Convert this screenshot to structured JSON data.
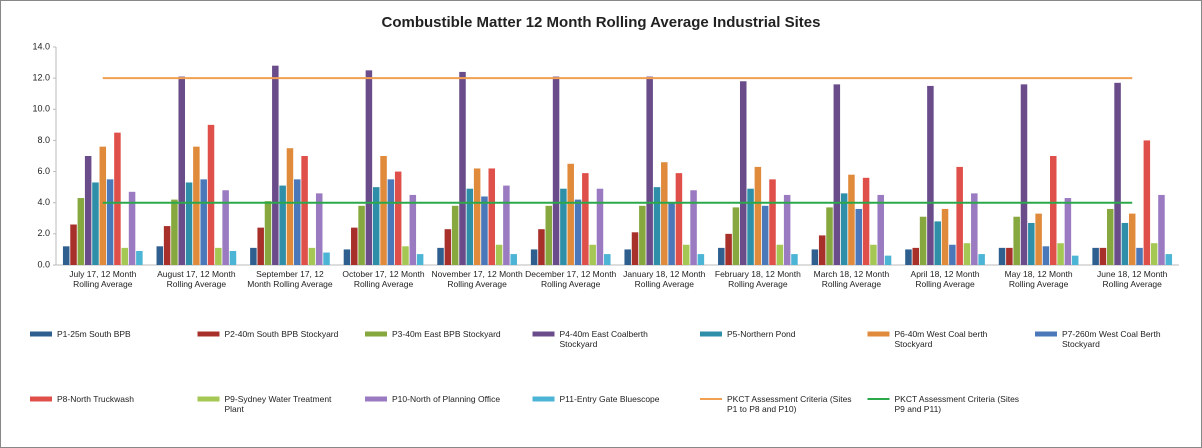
{
  "chart_data": {
    "type": "bar",
    "title": "Combustible Matter 12 Month Rolling Average Industrial Sites",
    "categories": [
      "July 17, 12 Month Rolling Average",
      "August 17, 12 Month Rolling Average",
      "September 17, 12 Month Rolling Average",
      "October 17, 12 Month Rolling Average",
      "November 17, 12 Month Rolling Average",
      "December 17, 12 Month Rolling Average",
      "January 18, 12 Month Rolling Average",
      "February 18, 12 Month Rolling Average",
      "March 18, 12 Month Rolling Average",
      "April 18, 12 Month Rolling Average",
      "May 18, 12 Month Rolling Average",
      "June 18, 12 Month Rolling Average"
    ],
    "ylim": [
      0,
      14
    ],
    "yticks": [
      {
        "value": 0,
        "label": "0.0"
      },
      {
        "value": 2,
        "label": "2.0"
      },
      {
        "value": 4,
        "label": "4.0"
      },
      {
        "value": 6,
        "label": "6.0"
      },
      {
        "value": 8,
        "label": "8.0"
      },
      {
        "value": 10,
        "label": "10.0"
      },
      {
        "value": 12,
        "label": "12.0"
      },
      {
        "value": 14,
        "label": "14.0"
      }
    ],
    "grid": false,
    "legend": "bottom",
    "series": [
      {
        "name": "P1-25m South BPB",
        "color": "#2e5f8f",
        "values": [
          1.2,
          1.2,
          1.1,
          1.0,
          1.1,
          1.0,
          1.0,
          1.1,
          1.0,
          1.0,
          1.1,
          1.1
        ]
      },
      {
        "name": "P2-40m South BPB Stockyard",
        "color": "#a8302b",
        "values": [
          2.6,
          2.5,
          2.4,
          2.4,
          2.3,
          2.3,
          2.1,
          2.0,
          1.9,
          1.1,
          1.1,
          1.1
        ]
      },
      {
        "name": "P3-40m East BPB Stockyard",
        "color": "#86a83e",
        "values": [
          4.3,
          4.2,
          4.1,
          3.8,
          3.8,
          3.8,
          3.8,
          3.7,
          3.7,
          3.1,
          3.1,
          3.6
        ]
      },
      {
        "name": "P4-40m East Coalberth Stockyard",
        "color": "#6a4c8a",
        "values": [
          7.0,
          12.1,
          12.8,
          12.5,
          12.4,
          12.1,
          12.1,
          11.8,
          11.6,
          11.5,
          11.6,
          11.7
        ]
      },
      {
        "name": "P5-Northern Pond",
        "color": "#2f8fa8",
        "values": [
          5.3,
          5.3,
          5.1,
          5.0,
          4.9,
          4.9,
          5.0,
          4.9,
          4.6,
          2.8,
          2.7,
          2.7
        ]
      },
      {
        "name": "P6-40m West Coal berth Stockyard",
        "color": "#e08a3c",
        "values": [
          7.6,
          7.6,
          7.5,
          7.0,
          6.2,
          6.5,
          6.6,
          6.3,
          5.8,
          3.6,
          3.3,
          3.3
        ]
      },
      {
        "name": "P7-260m West Coal Berth Stockyard",
        "color": "#4a78b8",
        "values": [
          5.5,
          5.5,
          5.5,
          5.5,
          4.4,
          4.2,
          4.0,
          3.8,
          3.6,
          1.3,
          1.2,
          1.1
        ]
      },
      {
        "name": "P8-North Truckwash",
        "color": "#e0504a",
        "values": [
          8.5,
          9.0,
          7.0,
          6.0,
          6.2,
          5.9,
          5.9,
          5.5,
          5.6,
          6.3,
          7.0,
          8.0
        ]
      },
      {
        "name": "P9-Sydney Water Treatment Plant",
        "color": "#a5c855",
        "values": [
          1.1,
          1.1,
          1.1,
          1.2,
          1.3,
          1.3,
          1.3,
          1.3,
          1.3,
          1.4,
          1.4,
          1.4
        ]
      },
      {
        "name": "P10-North of Planning Office",
        "color": "#9a7ac0",
        "values": [
          4.7,
          4.8,
          4.6,
          4.5,
          5.1,
          4.9,
          4.8,
          4.5,
          4.5,
          4.6,
          4.3,
          4.5
        ]
      },
      {
        "name": "P11-Entry Gate Bluescope",
        "color": "#4cb4d4",
        "values": [
          0.9,
          0.9,
          0.8,
          0.7,
          0.7,
          0.7,
          0.7,
          0.7,
          0.6,
          0.7,
          0.6,
          0.7
        ]
      },
      {
        "name": "PKCT Assessment Criteria (Sites P1 to P8 and P10)",
        "color": "#f0a050",
        "type": "line",
        "values": [
          12,
          12,
          12,
          12,
          12,
          12,
          12,
          12,
          12,
          12,
          12,
          12
        ]
      },
      {
        "name": "PKCT Assessment Criteria (Sites P9 and P11)",
        "color": "#2aa84a",
        "type": "line",
        "values": [
          4,
          4,
          4,
          4,
          4,
          4,
          4,
          4,
          4,
          4,
          4,
          4
        ]
      }
    ]
  }
}
